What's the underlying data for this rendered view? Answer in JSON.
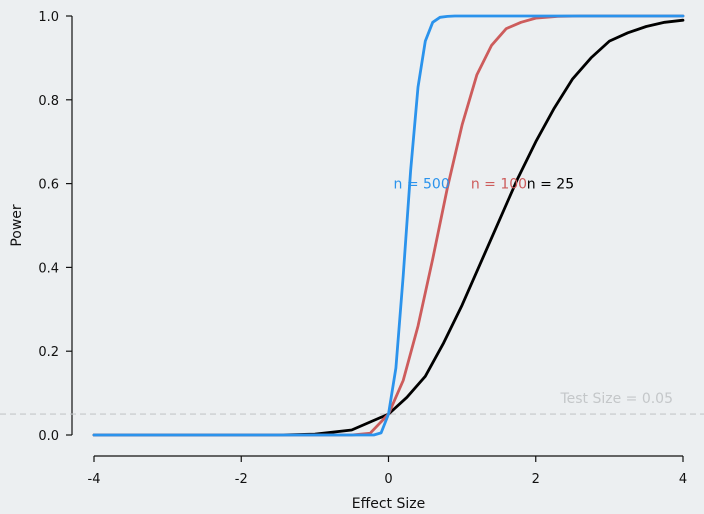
{
  "chart_data": {
    "type": "line",
    "title": "",
    "xlabel": "Effect Size",
    "ylabel": "Power",
    "xlim": [
      -4,
      4
    ],
    "ylim": [
      0,
      1
    ],
    "x_ticks": [
      -4,
      -2,
      0,
      2,
      4
    ],
    "x_tick_labels": [
      "-4",
      "-2",
      "0",
      "2",
      "4"
    ],
    "y_ticks": [
      0,
      0.2,
      0.4,
      0.6,
      0.8,
      1.0
    ],
    "y_tick_labels": [
      "0.0",
      "0.2",
      "0.4",
      "0.6",
      "0.8",
      "1.0"
    ],
    "grid": false,
    "reference_line": {
      "y": 0.05,
      "label": "Test Size = 0.05",
      "color": "#c4c7c9",
      "style": "dashed"
    },
    "series": [
      {
        "name": "n = 25",
        "color": "#000000",
        "label_at": [
          2.2,
          0.6
        ],
        "x": [
          -4,
          -3.5,
          -3,
          -2.5,
          -2,
          -1.5,
          -1,
          -0.5,
          0,
          0.25,
          0.5,
          0.75,
          1,
          1.25,
          1.5,
          1.75,
          2,
          2.25,
          2.5,
          2.75,
          3,
          3.25,
          3.5,
          3.75,
          4
        ],
        "values": [
          0.0,
          0.0,
          0.0,
          0.0,
          0.0,
          0.0,
          0.002,
          0.012,
          0.05,
          0.09,
          0.14,
          0.22,
          0.31,
          0.41,
          0.51,
          0.61,
          0.7,
          0.78,
          0.85,
          0.9,
          0.94,
          0.96,
          0.975,
          0.985,
          0.99
        ]
      },
      {
        "name": "n = 100",
        "color": "#cd5c5c",
        "label_at": [
          1.5,
          0.6
        ],
        "x": [
          -4,
          -3,
          -2,
          -1.5,
          -1,
          -0.5,
          -0.25,
          0,
          0.2,
          0.4,
          0.6,
          0.8,
          1,
          1.2,
          1.4,
          1.6,
          1.8,
          2,
          2.3,
          2.6,
          3,
          3.5,
          4
        ],
        "values": [
          0.0,
          0.0,
          0.0,
          0.0,
          0.0,
          0.0,
          0.004,
          0.05,
          0.13,
          0.26,
          0.42,
          0.59,
          0.74,
          0.86,
          0.93,
          0.97,
          0.985,
          0.995,
          0.999,
          1.0,
          1.0,
          1.0,
          1.0
        ]
      },
      {
        "name": "n = 500",
        "color": "#2b93ec",
        "label_at": [
          0.45,
          0.6
        ],
        "x": [
          -4,
          -3,
          -2,
          -1,
          -0.5,
          -0.3,
          -0.2,
          -0.1,
          0,
          0.1,
          0.2,
          0.3,
          0.4,
          0.5,
          0.6,
          0.7,
          0.8,
          0.9,
          1,
          1.5,
          2,
          3,
          4
        ],
        "values": [
          0.0,
          0.0,
          0.0,
          0.0,
          0.0,
          0.0,
          0.0,
          0.005,
          0.05,
          0.16,
          0.38,
          0.63,
          0.83,
          0.94,
          0.985,
          0.997,
          0.999,
          1.0,
          1.0,
          1.0,
          1.0,
          1.0,
          1.0
        ]
      }
    ]
  }
}
